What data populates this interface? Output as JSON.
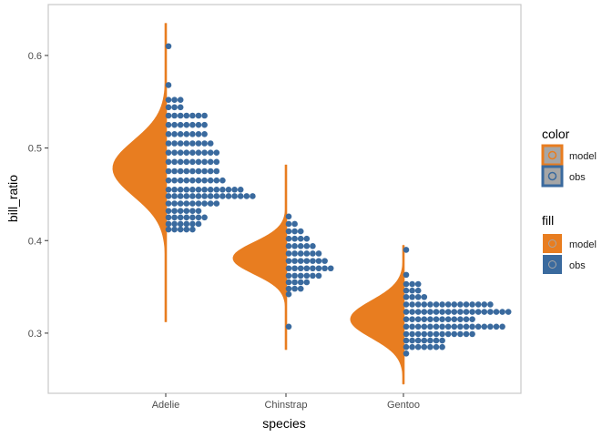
{
  "chart_data": {
    "type": "halfeye-dotplot",
    "xlabel": "species",
    "ylabel": "bill_ratio",
    "categories": [
      "Adelie",
      "Chinstrap",
      "Gentoo"
    ],
    "ylim": [
      0.235,
      0.655
    ],
    "yticks": [
      0.3,
      0.4,
      0.5,
      0.6
    ],
    "grid": false,
    "legend_position": "right",
    "colors": {
      "model": "#E87D20",
      "obs": "#3A6A9E",
      "legend_key_bg": "#A6A6A6"
    },
    "legends": [
      {
        "title": "color",
        "items": [
          "model",
          "obs"
        ]
      },
      {
        "title": "fill",
        "items": [
          "model",
          "obs"
        ]
      }
    ],
    "series": [
      {
        "name": "model",
        "densities": [
          {
            "category": "Adelie",
            "range": [
              0.312,
              0.635
            ],
            "mode": 0.478,
            "sd": 0.03
          },
          {
            "category": "Chinstrap",
            "range": [
              0.282,
              0.482
            ],
            "mode": 0.381,
            "sd": 0.017
          },
          {
            "category": "Gentoo",
            "range": [
              0.245,
              0.395
            ],
            "mode": 0.315,
            "sd": 0.02
          }
        ]
      },
      {
        "name": "obs",
        "dot_columns": [
          {
            "category": "Adelie",
            "bins": [
              [
                0.61,
                1
              ],
              [
                0.568,
                1
              ],
              [
                0.552,
                3
              ],
              [
                0.544,
                3
              ],
              [
                0.535,
                7
              ],
              [
                0.525,
                7
              ],
              [
                0.515,
                7
              ],
              [
                0.505,
                8
              ],
              [
                0.495,
                9
              ],
              [
                0.485,
                9
              ],
              [
                0.475,
                9
              ],
              [
                0.465,
                10
              ],
              [
                0.455,
                13
              ],
              [
                0.448,
                15
              ],
              [
                0.44,
                9
              ],
              [
                0.432,
                6
              ],
              [
                0.425,
                7
              ],
              [
                0.418,
                6
              ],
              [
                0.412,
                5
              ]
            ]
          },
          {
            "category": "Chinstrap",
            "bins": [
              [
                0.426,
                1
              ],
              [
                0.418,
                2
              ],
              [
                0.41,
                3
              ],
              [
                0.402,
                4
              ],
              [
                0.394,
                5
              ],
              [
                0.386,
                6
              ],
              [
                0.378,
                7
              ],
              [
                0.37,
                8
              ],
              [
                0.362,
                6
              ],
              [
                0.355,
                4
              ],
              [
                0.348,
                3
              ],
              [
                0.342,
                1
              ],
              [
                0.307,
                1
              ]
            ]
          },
          {
            "category": "Gentoo",
            "bins": [
              [
                0.39,
                1
              ],
              [
                0.363,
                1
              ],
              [
                0.353,
                3
              ],
              [
                0.346,
                3
              ],
              [
                0.339,
                4
              ],
              [
                0.331,
                15
              ],
              [
                0.323,
                18
              ],
              [
                0.315,
                12
              ],
              [
                0.307,
                17
              ],
              [
                0.299,
                12
              ],
              [
                0.292,
                7
              ],
              [
                0.285,
                7
              ],
              [
                0.278,
                1
              ]
            ]
          }
        ]
      }
    ]
  }
}
